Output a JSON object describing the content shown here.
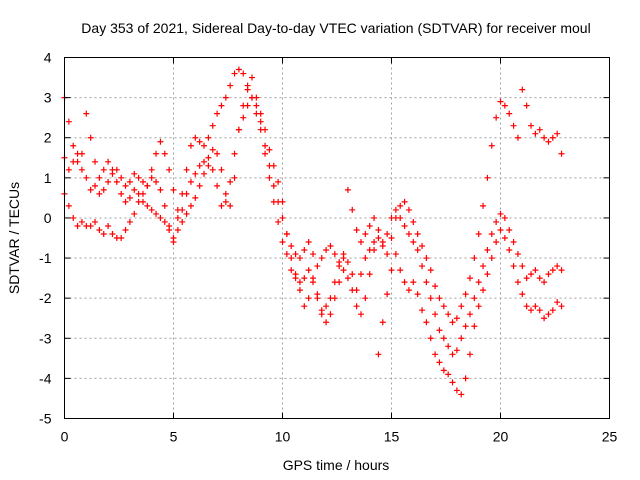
{
  "chart_data": {
    "type": "scatter",
    "title": "Day 353 of 2021, Sidereal Day-to-day VTEC variation (SDTVAR) for receiver moul",
    "xlabel": "GPS time / hours",
    "ylabel": "SDTVAR / TECUs",
    "xlim": [
      0,
      25
    ],
    "ylim": [
      -5,
      4
    ],
    "xticks": [
      "0",
      "5",
      "10",
      "15",
      "20",
      "25"
    ],
    "yticks": [
      "-5",
      "-4",
      "-3",
      "-2",
      "-1",
      "0",
      "1",
      "2",
      "3",
      "4"
    ],
    "grid": true,
    "marker": "plus",
    "color": "#ff0000",
    "series": [
      {
        "x": [
          0.0,
          0.2,
          0.4,
          0.6,
          0.8,
          1.0,
          1.2,
          1.4,
          1.6,
          1.8,
          2.0,
          2.2,
          2.4,
          2.6,
          2.8,
          3.0,
          3.2,
          3.4,
          3.6,
          3.8,
          4.0,
          4.2,
          4.4,
          4.6,
          4.8,
          5.0,
          5.2,
          5.4,
          5.6,
          5.8,
          6.0,
          6.2,
          6.4,
          6.6,
          6.8,
          7.0,
          7.2,
          7.4,
          7.6,
          7.8,
          8.0,
          8.2,
          8.4,
          8.6,
          8.8,
          9.0,
          9.2,
          9.4,
          9.6,
          9.8,
          10.0,
          10.2,
          10.4,
          10.6,
          10.8,
          11.0,
          11.2,
          11.4,
          11.6,
          11.8,
          12.0,
          12.2,
          12.4,
          12.6,
          12.8,
          13.0,
          13.2,
          13.4,
          13.6,
          13.8,
          14.0,
          14.2,
          14.4,
          14.6,
          14.8,
          15.0,
          15.2,
          15.4,
          15.6,
          15.8,
          16.0,
          16.2,
          16.4,
          16.6,
          16.8,
          17.0,
          17.2,
          17.4,
          17.6,
          17.8,
          18.0,
          18.2,
          18.4,
          18.6,
          18.8,
          19.0,
          19.2,
          19.4,
          19.6,
          19.8,
          20.0,
          20.2,
          20.4,
          20.6,
          20.8,
          21.0,
          21.2,
          21.4,
          21.6,
          21.8,
          22.0,
          22.2,
          22.4,
          22.6,
          22.8
        ],
        "y": [
          1.5,
          1.2,
          1.4,
          1.6,
          1.2,
          1.0,
          0.7,
          0.8,
          0.6,
          0.7,
          0.9,
          1.1,
          1.2,
          1.0,
          0.8,
          0.9,
          1.1,
          1.0,
          0.9,
          0.8,
          1.0,
          0.9,
          0.7,
          0.3,
          -0.2,
          -0.6,
          -0.3,
          0.2,
          0.6,
          0.9,
          1.1,
          1.3,
          1.4,
          1.5,
          1.7,
          1.6,
          1.2,
          0.6,
          0.3,
          1.0,
          2.2,
          2.8,
          3.2,
          3.5,
          3.0,
          2.6,
          2.2,
          1.7,
          1.3,
          0.9,
          0.4,
          -0.4,
          -1.0,
          -1.4,
          -1.8,
          -2.2,
          -2.0,
          -1.6,
          -2.0,
          -2.4,
          -2.2,
          -2.0,
          -1.6,
          -1.2,
          -1.0,
          -1.1,
          -1.4,
          -1.8,
          -1.4,
          -1.0,
          -0.8,
          -0.6,
          -0.5,
          -0.7,
          -0.4,
          0.0,
          0.2,
          0.0,
          -0.2,
          -0.4,
          -0.6,
          -0.8,
          -1.2,
          -1.6,
          -2.0,
          -2.4,
          -2.8,
          -3.0,
          -3.2,
          -3.4,
          -3.3,
          -3.0,
          -2.7,
          -2.4,
          -2.0,
          -1.6,
          -1.2,
          -0.8,
          -0.4,
          -0.1,
          0.1,
          0.0,
          -0.3,
          -0.6,
          -0.9,
          -1.2,
          -1.5,
          -1.4,
          -1.3,
          -1.5,
          -1.6,
          -1.4,
          -1.3,
          -1.2,
          -1.3
        ]
      },
      {
        "x": [
          0.0,
          0.2,
          0.4,
          0.6,
          0.8,
          1.0,
          1.2,
          1.4,
          1.6,
          1.8,
          2.0,
          2.2,
          2.4,
          2.6,
          2.8,
          3.0,
          3.2,
          3.4,
          3.6,
          3.8,
          4.0,
          4.2,
          4.4,
          4.6,
          4.8,
          5.0,
          5.2,
          5.4,
          5.6,
          5.8,
          6.0,
          6.2,
          6.4,
          6.6,
          6.8,
          7.0,
          7.2,
          7.4,
          7.6,
          7.8,
          8.0,
          8.2,
          8.4,
          8.6,
          8.8,
          9.0,
          9.2,
          9.4,
          9.6,
          9.8,
          10.0,
          10.2,
          10.4,
          10.6,
          10.8,
          11.0,
          11.2,
          11.4,
          11.6,
          11.8,
          12.0,
          12.2,
          12.4,
          12.6,
          12.8,
          13.0,
          13.2,
          13.4,
          13.6,
          13.8,
          14.0,
          14.2,
          14.4,
          14.6,
          14.8,
          15.0,
          15.2,
          15.4,
          15.6,
          15.8,
          16.0,
          16.2,
          16.4,
          16.6,
          16.8,
          17.0,
          17.2,
          17.4,
          17.6,
          17.8,
          18.0,
          18.2,
          18.4,
          18.6,
          18.8,
          19.0,
          19.2,
          19.4,
          19.6,
          19.8,
          20.0,
          20.2,
          20.4,
          20.6,
          20.8,
          21.0,
          21.2,
          21.4,
          21.6,
          21.8,
          22.0,
          22.2,
          22.4,
          22.6,
          22.8
        ],
        "y": [
          0.6,
          0.3,
          0.0,
          -0.2,
          -0.1,
          -0.2,
          -0.2,
          -0.1,
          -0.3,
          -0.4,
          -0.2,
          -0.4,
          -0.5,
          -0.5,
          -0.3,
          -0.1,
          0.1,
          0.4,
          0.6,
          0.8,
          1.2,
          1.6,
          1.9,
          1.6,
          1.2,
          0.7,
          0.2,
          -0.1,
          0.1,
          0.3,
          0.5,
          0.8,
          1.1,
          1.3,
          1.2,
          0.8,
          0.3,
          0.4,
          0.9,
          1.6,
          2.2,
          2.5,
          2.8,
          3.0,
          2.6,
          2.2,
          1.6,
          1.0,
          0.4,
          -0.1,
          -0.6,
          -0.9,
          -1.3,
          -1.5,
          -1.6,
          -1.5,
          -1.3,
          -1.5,
          -1.9,
          -2.3,
          -2.6,
          -2.4,
          -2.0,
          -1.6,
          -1.3,
          -1.5,
          -1.8,
          -2.2,
          -2.4,
          -2.0,
          -1.4,
          -0.8,
          -3.4,
          -2.6,
          -1.9,
          -1.3,
          -0.9,
          -1.3,
          -1.6,
          -1.8,
          -1.6,
          -1.9,
          -2.3,
          -2.6,
          -3.0,
          -3.4,
          -3.6,
          -3.8,
          -3.9,
          -4.1,
          -4.3,
          -4.4,
          -4.0,
          -3.4,
          -2.7,
          -2.2,
          -1.8,
          -1.4,
          -1.0,
          -0.6,
          -0.3,
          -0.5,
          -0.8,
          -1.2,
          -1.6,
          -1.9,
          -2.2,
          -2.3,
          -2.2,
          -2.3,
          -2.5,
          -2.4,
          -2.3,
          -2.1,
          -2.2
        ]
      },
      {
        "x": [
          0.0,
          0.2,
          0.4,
          0.6,
          0.8,
          1.0,
          1.2,
          1.4,
          1.6,
          1.8,
          2.0,
          2.2,
          2.4,
          2.6,
          2.8,
          3.0,
          3.2,
          3.4,
          3.6,
          3.8,
          4.0,
          4.2,
          4.4,
          4.6,
          4.8,
          5.0,
          5.2,
          5.4,
          5.6,
          5.8,
          6.0,
          6.2,
          6.4,
          6.6,
          6.8,
          7.0,
          7.2,
          7.4,
          7.6,
          7.8,
          8.0,
          8.2,
          8.4,
          8.6,
          8.8,
          9.0,
          9.2,
          9.4,
          9.6,
          9.8,
          10.0,
          10.2,
          10.4,
          10.6,
          10.8,
          11.0,
          11.2,
          11.4,
          11.6,
          11.8,
          12.0,
          12.2,
          12.4,
          12.6,
          12.8,
          13.0,
          13.2,
          13.4,
          13.6,
          13.8,
          14.0,
          14.2,
          14.4,
          14.6,
          14.8,
          15.0,
          15.2,
          15.4,
          15.6,
          15.8,
          16.0,
          16.2,
          16.4,
          16.6,
          16.8,
          17.0,
          17.2,
          17.4,
          17.6,
          17.8,
          18.0,
          18.2,
          18.4,
          18.6,
          18.8,
          19.0,
          19.2,
          19.4,
          19.6,
          19.8,
          20.0,
          20.2,
          20.4,
          20.6,
          20.8,
          21.0,
          21.2,
          21.4,
          21.6,
          21.8,
          22.0,
          22.2,
          22.4,
          22.6,
          22.8
        ],
        "y": [
          3.0,
          2.4,
          1.8,
          1.4,
          1.6,
          2.6,
          2.0,
          1.4,
          1.0,
          1.2,
          1.4,
          1.2,
          0.9,
          0.6,
          0.4,
          0.5,
          0.7,
          0.6,
          0.4,
          0.3,
          0.2,
          0.1,
          0.0,
          -0.1,
          -0.3,
          -0.5,
          0.0,
          0.6,
          1.2,
          1.8,
          2.0,
          1.9,
          1.8,
          2.0,
          2.3,
          2.6,
          2.8,
          3.0,
          3.3,
          3.6,
          3.7,
          3.6,
          3.3,
          3.0,
          2.8,
          2.4,
          1.8,
          1.3,
          0.8,
          0.4,
          0.0,
          -0.4,
          -0.7,
          -0.9,
          -1.0,
          -0.8,
          -0.6,
          -0.9,
          -1.2,
          -1.0,
          -0.8,
          -0.7,
          -0.9,
          -1.1,
          -0.9,
          0.7,
          0.2,
          -0.3,
          -0.6,
          -0.4,
          -0.2,
          0.0,
          -0.3,
          -0.6,
          -0.9,
          -0.5,
          0.0,
          0.3,
          0.4,
          0.2,
          -0.1,
          -0.4,
          -0.7,
          -1.0,
          -1.3,
          -1.7,
          -2.0,
          -2.2,
          -2.4,
          -2.6,
          -2.5,
          -2.2,
          -1.9,
          -1.5,
          -1.0,
          -0.4,
          0.3,
          1.0,
          1.8,
          2.5,
          2.9,
          2.8,
          2.6,
          2.3,
          2.0,
          3.2,
          2.8,
          2.3,
          2.1,
          2.2,
          2.0,
          1.9,
          2.0,
          2.1,
          1.6
        ]
      }
    ]
  }
}
